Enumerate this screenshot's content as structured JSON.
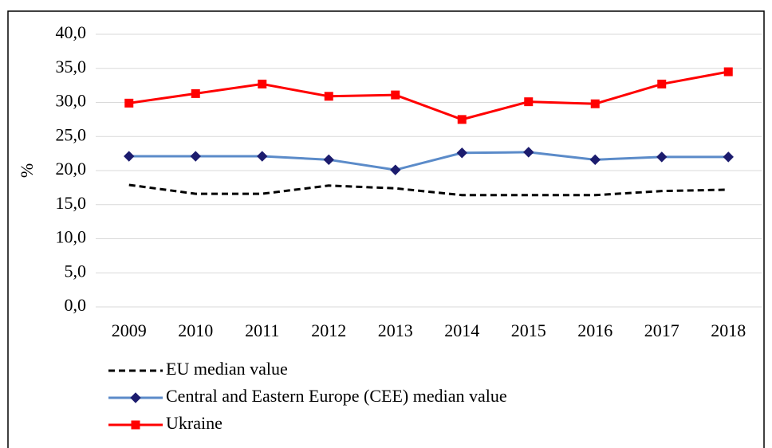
{
  "chart_data": {
    "type": "line",
    "y_label": "%",
    "categories": [
      "2009",
      "2010",
      "2011",
      "2012",
      "2013",
      "2014",
      "2015",
      "2016",
      "2017",
      "2018"
    ],
    "series": [
      {
        "name": "EU median value",
        "color": "#000000",
        "dash": true,
        "marker": null,
        "values": [
          17.9,
          16.6,
          16.6,
          17.8,
          17.4,
          16.4,
          16.4,
          16.4,
          17.0,
          17.2
        ]
      },
      {
        "name": "Central and Eastern Europe (CEE) median value",
        "color": "#5b8bc9",
        "dash": false,
        "marker": "diamond",
        "marker_color": "#1c1c6e",
        "values": [
          22.1,
          22.1,
          22.1,
          21.6,
          20.1,
          22.6,
          22.7,
          21.6,
          22.0,
          22.0
        ]
      },
      {
        "name": "Ukraine",
        "color": "#ff0000",
        "dash": false,
        "marker": "square",
        "marker_color": "#ff0000",
        "values": [
          29.9,
          31.3,
          32.7,
          30.9,
          31.1,
          27.5,
          30.1,
          29.8,
          32.7,
          34.5
        ]
      }
    ],
    "ylim": [
      0,
      40
    ],
    "yticks": [
      {
        "value": 0,
        "label": "0,0"
      },
      {
        "value": 5,
        "label": "5,0"
      },
      {
        "value": 10,
        "label": "10,0"
      },
      {
        "value": 15,
        "label": "15,0"
      },
      {
        "value": 20,
        "label": "20,0"
      },
      {
        "value": 25,
        "label": "25,0"
      },
      {
        "value": 30,
        "label": "30,0"
      },
      {
        "value": 35,
        "label": "35,0"
      },
      {
        "value": 40,
        "label": "40,0"
      }
    ],
    "grid": true,
    "legend": "bottom-left"
  }
}
